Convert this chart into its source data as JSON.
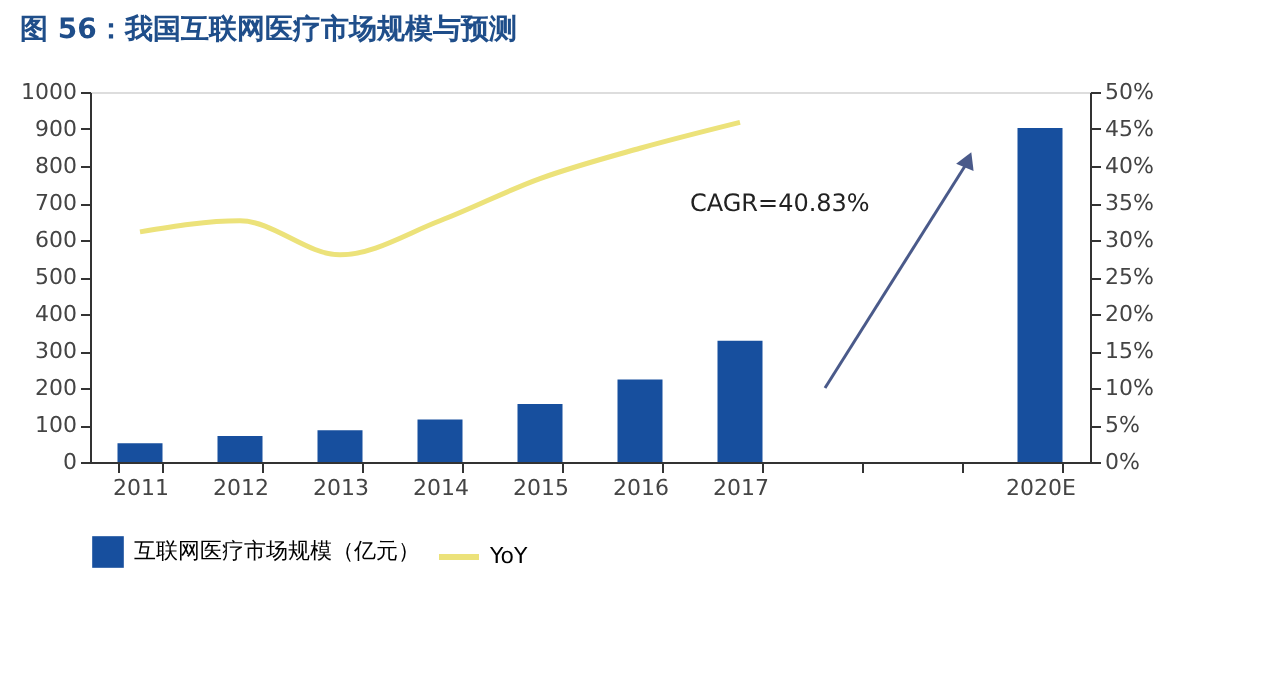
{
  "chart_data": {
    "type": "bar",
    "title": "图 56：我国互联网医疗市场规模与预测",
    "categories": [
      "2011",
      "2012",
      "2013",
      "2014",
      "2015",
      "2016",
      "2017",
      null,
      null,
      "2020E"
    ],
    "series": [
      {
        "name": "互联网医疗市场规模（亿元）",
        "color": "#174f9e",
        "values": [
          51,
          70,
          86,
          115,
          157,
          223,
          328,
          null,
          null,
          903
        ]
      },
      {
        "name": "YoY",
        "color": "#ece27a",
        "type": "line",
        "axis": "y2",
        "values": [
          31.1,
          32.6,
          28.0,
          32.6,
          38.3,
          42.4,
          45.9,
          null,
          null,
          null
        ]
      }
    ],
    "ylim": [
      0,
      1000
    ],
    "yticks": [
      0,
      100,
      200,
      300,
      400,
      500,
      600,
      700,
      800,
      900,
      1000
    ],
    "y2lim": [
      0,
      50
    ],
    "y2ticks": [
      {
        "value": 0,
        "label": "0%"
      },
      {
        "value": 5,
        "label": "5%"
      },
      {
        "value": 10,
        "label": "10%"
      },
      {
        "value": 15,
        "label": "15%"
      },
      {
        "value": 20,
        "label": "20%"
      },
      {
        "value": 25,
        "label": "25%"
      },
      {
        "value": 30,
        "label": "30%"
      },
      {
        "value": 35,
        "label": "35%"
      },
      {
        "value": 40,
        "label": "40%"
      },
      {
        "value": 45,
        "label": "45%"
      },
      {
        "value": 50,
        "label": "50%"
      }
    ],
    "annotations": [
      "CAGR=40.83%"
    ],
    "grid": false,
    "legend": "bottom"
  }
}
